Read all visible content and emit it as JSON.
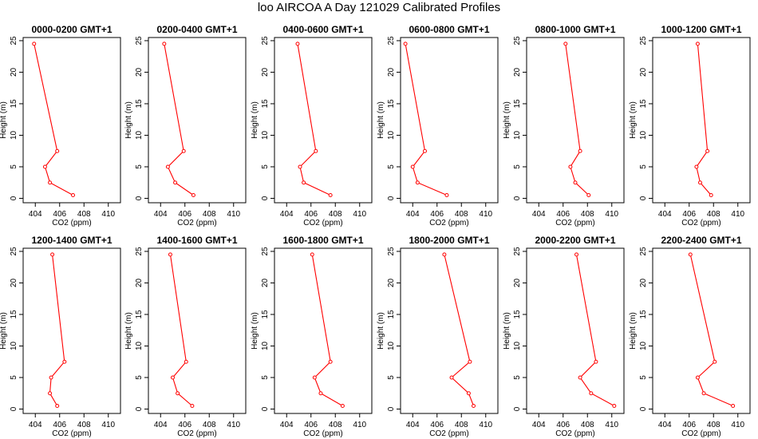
{
  "title": "loo AIRCOA A  Day 121029  Calibrated Profiles",
  "colors": {
    "series": "#ff0000",
    "axis": "#000000",
    "background": "#ffffff"
  },
  "chart_data": [
    {
      "type": "line",
      "title": "0000-0200 GMT+1",
      "xlabel": "CO2 (ppm)",
      "ylabel": "Height (m)",
      "xlim": [
        403,
        411
      ],
      "ylim": [
        -0.7,
        25.5
      ],
      "xticks": [
        404,
        406,
        408,
        410
      ],
      "xticklabels": [
        "404",
        "406",
        "408",
        "410"
      ],
      "yticks": [
        0,
        5,
        10,
        15,
        20,
        25
      ],
      "yticklabels": [
        "0",
        "5",
        "10",
        "15",
        "20",
        "25"
      ],
      "series": [
        {
          "x": [
            407.1,
            405.2,
            404.8,
            405.8,
            403.9
          ],
          "y": [
            0.5,
            2.5,
            5,
            7.5,
            24.5
          ]
        }
      ]
    },
    {
      "type": "line",
      "title": "0200-0400 GMT+1",
      "xlabel": "CO2 (ppm)",
      "ylabel": "Height (m)",
      "xlim": [
        403,
        411
      ],
      "ylim": [
        -0.7,
        25.5
      ],
      "xticks": [
        404,
        406,
        408,
        410
      ],
      "xticklabels": [
        "404",
        "406",
        "408",
        "410"
      ],
      "yticks": [
        0,
        5,
        10,
        15,
        20,
        25
      ],
      "yticklabels": [
        "0",
        "5",
        "10",
        "15",
        "20",
        "25"
      ],
      "series": [
        {
          "x": [
            406.7,
            405.2,
            404.6,
            405.9,
            404.3
          ],
          "y": [
            0.5,
            2.5,
            5,
            7.5,
            24.5
          ]
        }
      ]
    },
    {
      "type": "line",
      "title": "0400-0600 GMT+1",
      "xlabel": "CO2 (ppm)",
      "ylabel": "Height (m)",
      "xlim": [
        403,
        411
      ],
      "ylim": [
        -0.7,
        25.5
      ],
      "xticks": [
        404,
        406,
        408,
        410
      ],
      "xticklabels": [
        "404",
        "406",
        "408",
        "410"
      ],
      "yticks": [
        0,
        5,
        10,
        15,
        20,
        25
      ],
      "yticklabels": [
        "0",
        "5",
        "10",
        "15",
        "20",
        "25"
      ],
      "series": [
        {
          "x": [
            407.6,
            405.4,
            405.1,
            406.4,
            404.9
          ],
          "y": [
            0.5,
            2.5,
            5,
            7.5,
            24.5
          ]
        }
      ]
    },
    {
      "type": "line",
      "title": "0600-0800 GMT+1",
      "xlabel": "CO2 (ppm)",
      "ylabel": "Height (m)",
      "xlim": [
        403,
        411
      ],
      "ylim": [
        -0.7,
        25.5
      ],
      "xticks": [
        404,
        406,
        408,
        410
      ],
      "xticklabels": [
        "404",
        "406",
        "408",
        "410"
      ],
      "yticks": [
        0,
        5,
        10,
        15,
        20,
        25
      ],
      "yticklabels": [
        "0",
        "5",
        "10",
        "15",
        "20",
        "25"
      ],
      "series": [
        {
          "x": [
            406.8,
            404.4,
            404.0,
            405.0,
            403.4
          ],
          "y": [
            0.5,
            2.5,
            5,
            7.5,
            24.5
          ]
        }
      ]
    },
    {
      "type": "line",
      "title": "0800-1000 GMT+1",
      "xlabel": "CO2 (ppm)",
      "ylabel": "Height (m)",
      "xlim": [
        403,
        411
      ],
      "ylim": [
        -0.7,
        25.5
      ],
      "xticks": [
        404,
        406,
        408,
        410
      ],
      "xticklabels": [
        "404",
        "406",
        "408",
        "410"
      ],
      "yticks": [
        0,
        5,
        10,
        15,
        20,
        25
      ],
      "yticklabels": [
        "0",
        "5",
        "10",
        "15",
        "20",
        "25"
      ],
      "series": [
        {
          "x": [
            408.1,
            407.0,
            406.6,
            407.4,
            406.2
          ],
          "y": [
            0.5,
            2.5,
            5,
            7.5,
            24.5
          ]
        }
      ]
    },
    {
      "type": "line",
      "title": "1000-1200 GMT+1",
      "xlabel": "CO2 (ppm)",
      "ylabel": "Height (m)",
      "xlim": [
        403,
        411
      ],
      "ylim": [
        -0.7,
        25.5
      ],
      "xticks": [
        404,
        406,
        408,
        410
      ],
      "xticklabels": [
        "404",
        "406",
        "408",
        "410"
      ],
      "yticks": [
        0,
        5,
        10,
        15,
        20,
        25
      ],
      "yticklabels": [
        "0",
        "5",
        "10",
        "15",
        "20",
        "25"
      ],
      "series": [
        {
          "x": [
            407.8,
            406.9,
            406.6,
            407.5,
            406.7
          ],
          "y": [
            0.5,
            2.5,
            5,
            7.5,
            24.5
          ]
        }
      ]
    },
    {
      "type": "line",
      "title": "1200-1400 GMT+1",
      "xlabel": "CO2 (ppm)",
      "ylabel": "Height (m)",
      "xlim": [
        403,
        411
      ],
      "ylim": [
        -0.7,
        25.5
      ],
      "xticks": [
        404,
        406,
        408,
        410
      ],
      "xticklabels": [
        "404",
        "406",
        "408",
        "410"
      ],
      "yticks": [
        0,
        5,
        10,
        15,
        20,
        25
      ],
      "yticklabels": [
        "0",
        "5",
        "10",
        "15",
        "20",
        "25"
      ],
      "series": [
        {
          "x": [
            405.8,
            405.2,
            405.3,
            406.4,
            405.4
          ],
          "y": [
            0.5,
            2.5,
            5,
            7.5,
            24.5
          ]
        }
      ]
    },
    {
      "type": "line",
      "title": "1400-1600 GMT+1",
      "xlabel": "CO2 (ppm)",
      "ylabel": "Height (m)",
      "xlim": [
        403,
        411
      ],
      "ylim": [
        -0.7,
        25.5
      ],
      "xticks": [
        404,
        406,
        408,
        410
      ],
      "xticklabels": [
        "404",
        "406",
        "408",
        "410"
      ],
      "yticks": [
        0,
        5,
        10,
        15,
        20,
        25
      ],
      "yticklabels": [
        "0",
        "5",
        "10",
        "15",
        "20",
        "25"
      ],
      "series": [
        {
          "x": [
            406.6,
            405.4,
            405.0,
            406.1,
            404.8
          ],
          "y": [
            0.5,
            2.5,
            5,
            7.5,
            24.5
          ]
        }
      ]
    },
    {
      "type": "line",
      "title": "1600-1800 GMT+1",
      "xlabel": "CO2 (ppm)",
      "ylabel": "Height (m)",
      "xlim": [
        403,
        411
      ],
      "ylim": [
        -0.7,
        25.5
      ],
      "xticks": [
        404,
        406,
        408,
        410
      ],
      "xticklabels": [
        "404",
        "406",
        "408",
        "410"
      ],
      "yticks": [
        0,
        5,
        10,
        15,
        20,
        25
      ],
      "yticklabels": [
        "0",
        "5",
        "10",
        "15",
        "20",
        "25"
      ],
      "series": [
        {
          "x": [
            408.6,
            406.8,
            406.3,
            407.6,
            406.1
          ],
          "y": [
            0.5,
            2.5,
            5,
            7.5,
            24.5
          ]
        }
      ]
    },
    {
      "type": "line",
      "title": "1800-2000 GMT+1",
      "xlabel": "CO2 (ppm)",
      "ylabel": "Height (m)",
      "xlim": [
        403,
        411
      ],
      "ylim": [
        -0.7,
        25.5
      ],
      "xticks": [
        404,
        406,
        408,
        410
      ],
      "xticklabels": [
        "404",
        "406",
        "408",
        "410"
      ],
      "yticks": [
        0,
        5,
        10,
        15,
        20,
        25
      ],
      "yticklabels": [
        "0",
        "5",
        "10",
        "15",
        "20",
        "25"
      ],
      "series": [
        {
          "x": [
            409.0,
            408.6,
            407.2,
            408.7,
            406.6
          ],
          "y": [
            0.5,
            2.5,
            5,
            7.5,
            24.5
          ]
        }
      ]
    },
    {
      "type": "line",
      "title": "2000-2200 GMT+1",
      "xlabel": "CO2 (ppm)",
      "ylabel": "Height (m)",
      "xlim": [
        403,
        411
      ],
      "ylim": [
        -0.7,
        25.5
      ],
      "xticks": [
        404,
        406,
        408,
        410
      ],
      "xticklabels": [
        "404",
        "406",
        "408",
        "410"
      ],
      "yticks": [
        0,
        5,
        10,
        15,
        20,
        25
      ],
      "yticklabels": [
        "0",
        "5",
        "10",
        "15",
        "20",
        "25"
      ],
      "series": [
        {
          "x": [
            410.2,
            408.3,
            407.4,
            408.7,
            407.1
          ],
          "y": [
            0.5,
            2.5,
            5,
            7.5,
            24.5
          ]
        }
      ]
    },
    {
      "type": "line",
      "title": "2200-2400 GMT+1",
      "xlabel": "CO2 (ppm)",
      "ylabel": "Height (m)",
      "xlim": [
        403,
        411
      ],
      "ylim": [
        -0.7,
        25.5
      ],
      "xticks": [
        404,
        406,
        408,
        410
      ],
      "xticklabels": [
        "404",
        "406",
        "408",
        "410"
      ],
      "yticks": [
        0,
        5,
        10,
        15,
        20,
        25
      ],
      "yticklabels": [
        "0",
        "5",
        "10",
        "15",
        "20",
        "25"
      ],
      "series": [
        {
          "x": [
            409.6,
            407.2,
            406.7,
            408.1,
            406.1
          ],
          "y": [
            0.5,
            2.5,
            5,
            7.5,
            24.5
          ]
        }
      ]
    }
  ]
}
